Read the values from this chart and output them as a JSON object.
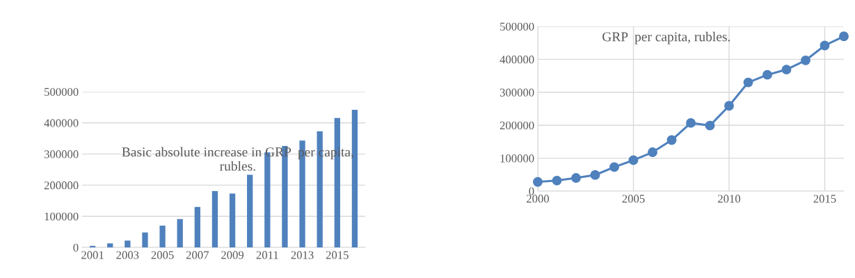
{
  "chart_data": [
    {
      "type": "bar",
      "title": "Basic absolute increase in GRP  per capita, rubles.",
      "categories": [
        "2001",
        null,
        "2003",
        null,
        "2005",
        null,
        "2007",
        null,
        "2009",
        null,
        "2011",
        null,
        "2013",
        null,
        "2015",
        null
      ],
      "values": [
        5000,
        13000,
        22000,
        48000,
        70000,
        91000,
        130000,
        181000,
        173000,
        233000,
        305000,
        326000,
        343000,
        373000,
        416000,
        442000
      ],
      "color": "#4f81bd",
      "ylim": [
        0,
        500000
      ],
      "yticks": [
        0,
        100000,
        200000,
        300000,
        400000,
        500000
      ],
      "grid": "y",
      "legend": false
    },
    {
      "type": "line",
      "title": "GRP  per capita, rubles.",
      "x": [
        2000,
        2001,
        2002,
        2003,
        2004,
        2005,
        2006,
        2007,
        2008,
        2009,
        2010,
        2011,
        2012,
        2013,
        2014,
        2015,
        2016
      ],
      "values": [
        28000,
        32000,
        40000,
        49000,
        73000,
        94000,
        118000,
        155000,
        207000,
        199000,
        259000,
        330000,
        353000,
        369000,
        397000,
        442000,
        470000
      ],
      "color": "#4f81bd",
      "marker": "circle",
      "line_style": "solid",
      "xlim": [
        2000,
        2016
      ],
      "xticks": [
        2000,
        2005,
        2010,
        2015
      ],
      "ylim": [
        0,
        500000
      ],
      "yticks": [
        0,
        100000,
        200000,
        300000,
        400000,
        500000
      ],
      "grid": true,
      "legend": false
    }
  ]
}
